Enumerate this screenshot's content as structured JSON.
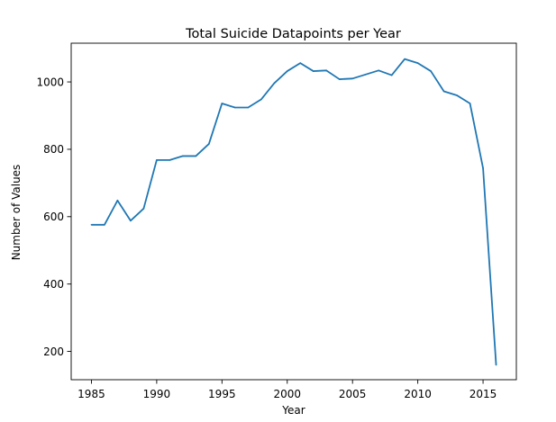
{
  "chart_data": {
    "type": "line",
    "title": "Total Suicide Datapoints per Year",
    "xlabel": "Year",
    "ylabel": "Number of Values",
    "xlim": [
      1983.45,
      2017.55
    ],
    "ylim": [
      116,
      1115
    ],
    "xticks": [
      1985,
      1990,
      1995,
      2000,
      2005,
      2010,
      2015
    ],
    "yticks": [
      200,
      400,
      600,
      800,
      1000
    ],
    "grid": false,
    "series": [
      {
        "color": "#1f77b4",
        "x": [
          1985,
          1986,
          1987,
          1988,
          1989,
          1990,
          1991,
          1992,
          1993,
          1994,
          1995,
          1996,
          1997,
          1998,
          1999,
          2000,
          2001,
          2002,
          2003,
          2004,
          2005,
          2006,
          2007,
          2008,
          2009,
          2010,
          2011,
          2012,
          2013,
          2014,
          2015,
          2016
        ],
        "y": [
          576,
          576,
          648,
          588,
          624,
          768,
          768,
          780,
          780,
          816,
          936,
          924,
          924,
          948,
          996,
          1032,
          1056,
          1032,
          1034,
          1008,
          1010,
          1022,
          1034,
          1020,
          1068,
          1056,
          1032,
          972,
          960,
          936,
          744,
          160
        ]
      }
    ]
  }
}
